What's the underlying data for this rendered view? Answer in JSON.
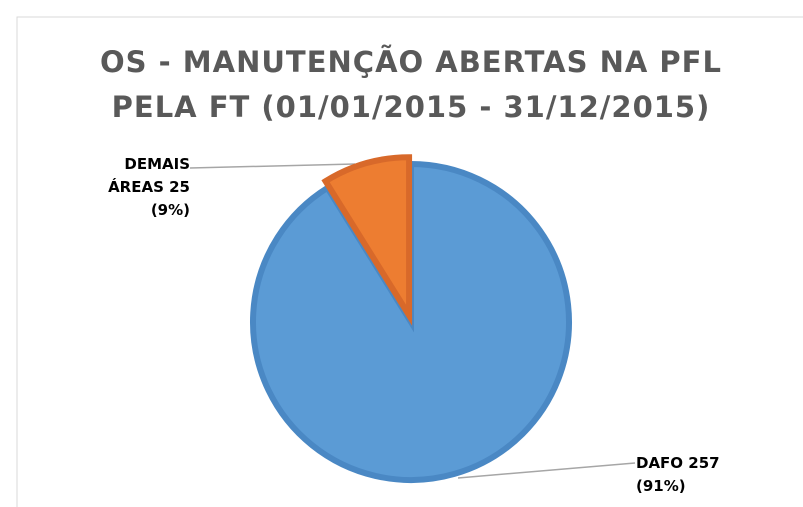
{
  "chart_data": {
    "type": "pie",
    "title": [
      "OS - MANUTENÇÃO ABERTAS NA PFL",
      "PELA FT (01/01/2015 - 31/12/2015)"
    ],
    "categories": [
      "DAFO",
      "DEMAIS ÁREAS"
    ],
    "values": [
      257,
      25
    ],
    "value_labels": [
      "257 (91%)",
      "25 (9%)"
    ],
    "colors": [
      "#5b9bd5",
      "#ed7d31"
    ]
  }
}
